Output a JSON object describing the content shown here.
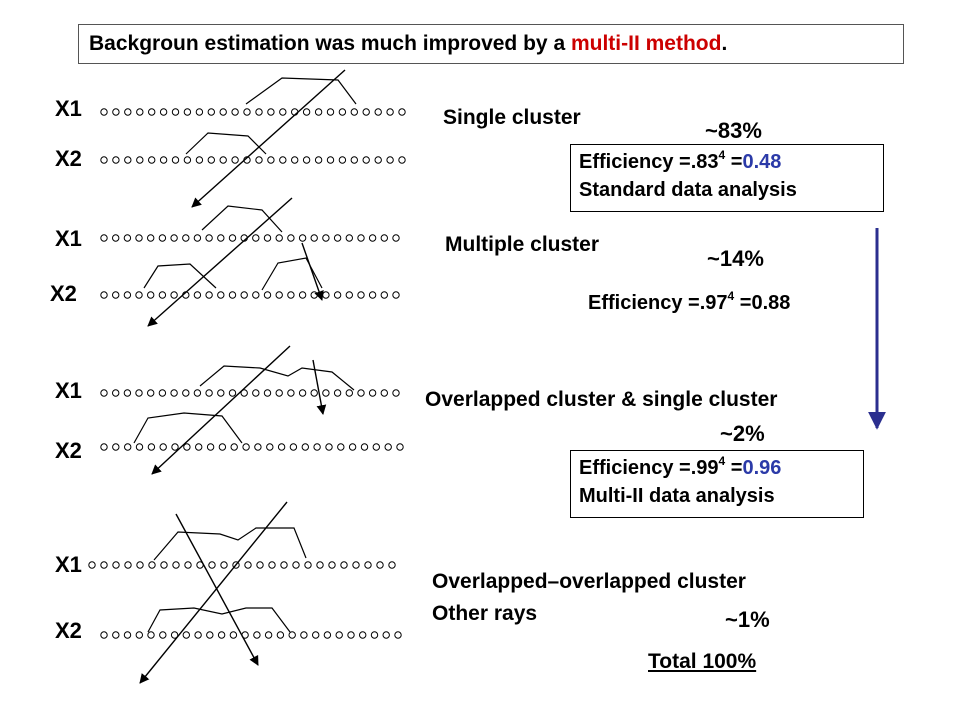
{
  "title": {
    "prefix": "Backgroun estimation was much improved by a ",
    "highlight": "multi-II method",
    "suffix": "."
  },
  "layer_labels": {
    "x1": "X1",
    "x2": "X2"
  },
  "categories": [
    {
      "name": "Single cluster",
      "percent": "~83%"
    },
    {
      "name": "Multiple cluster",
      "percent": "~14%"
    },
    {
      "name": "Overlapped cluster & single cluster",
      "percent": "~2%"
    },
    {
      "name_line1": "Overlapped–overlapped cluster",
      "name_line2": "Other rays",
      "percent": "~1%"
    }
  ],
  "efficiency_standard": {
    "prefix": "Efficiency =.83",
    "exponent": "4",
    "eq": " =",
    "value": "0.48",
    "line2": "Standard data analysis"
  },
  "efficiency_multiple": {
    "prefix": "Efficiency =.97",
    "exponent": "4",
    "eq": " =0.88"
  },
  "efficiency_multi": {
    "prefix": "Efficiency =.99",
    "exponent": "4",
    "eq": " =",
    "value": "0.96",
    "line2": "Multi-II data analysis"
  },
  "total": "Total 100%",
  "colors": {
    "highlight_red": "#cc0000",
    "value_blue": "#2b3aa8",
    "arrow_navy": "#2b2f8f"
  }
}
